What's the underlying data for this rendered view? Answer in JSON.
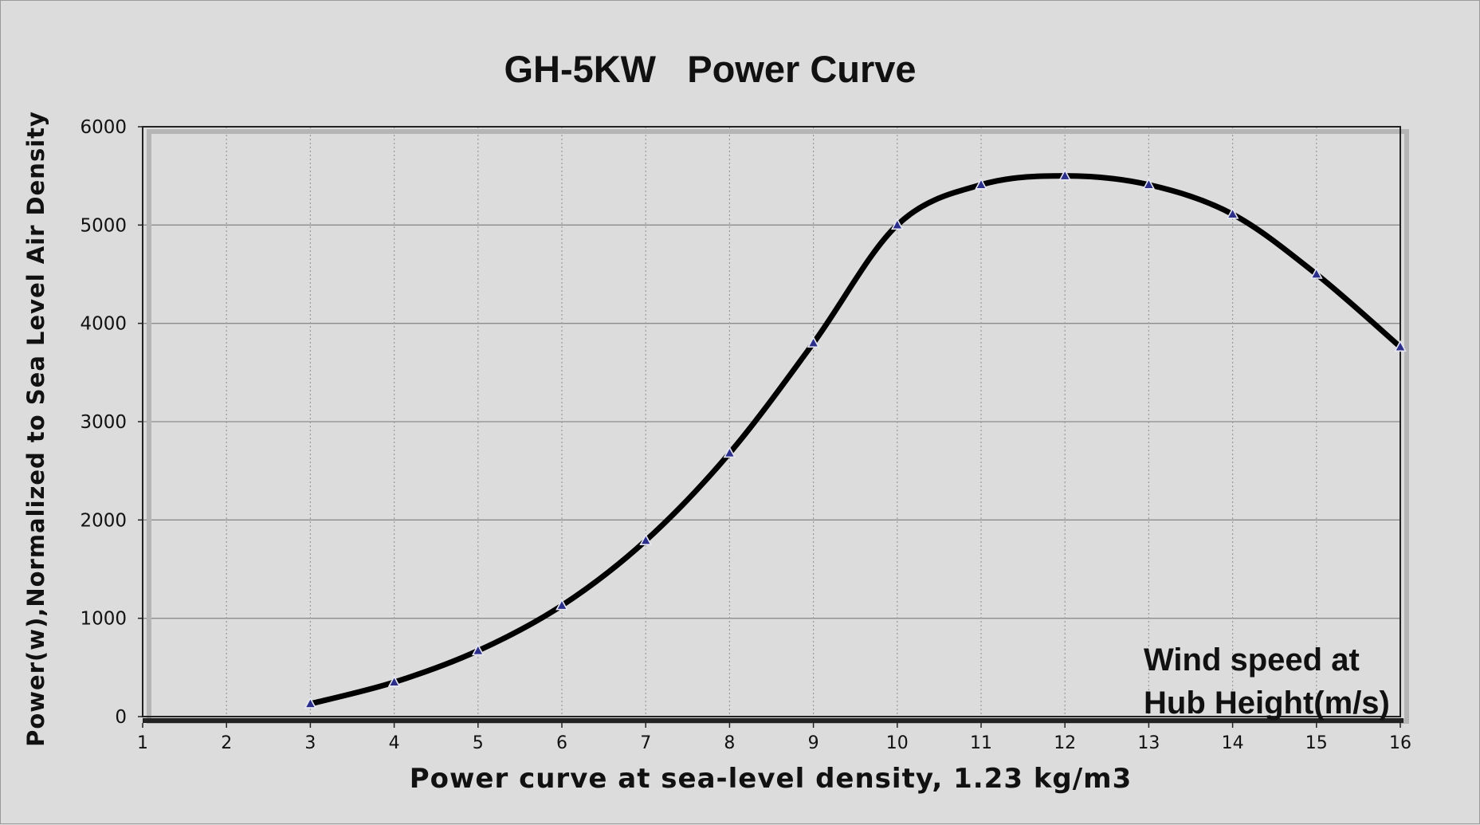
{
  "chart_data": {
    "type": "line",
    "title": "GH-5KW   Power Curve",
    "xlabel": "Power curve at sea-level density, 1.23 kg/m3",
    "ylabel": "Power(w),Normalized to Sea Level Air Density",
    "annotation": [
      "Wind speed at",
      "Hub Height(m/s)"
    ],
    "xlim": [
      1,
      16
    ],
    "ylim": [
      0,
      6000
    ],
    "x_ticks": [
      1,
      2,
      3,
      4,
      5,
      6,
      7,
      8,
      9,
      10,
      11,
      12,
      13,
      14,
      15,
      16
    ],
    "y_ticks": [
      0,
      1000,
      2000,
      3000,
      4000,
      5000,
      6000
    ],
    "grid": true,
    "series": [
      {
        "x": [
          3,
          4,
          5,
          6,
          7,
          8,
          9,
          10,
          11,
          12,
          13,
          14,
          15,
          16
        ],
        "y": [
          130,
          350,
          670,
          1130,
          1790,
          2680,
          3800,
          5000,
          5410,
          5500,
          5410,
          5110,
          4500,
          3760
        ],
        "color": "#000000",
        "marker": "triangle",
        "marker_color": "#2b2f8a"
      }
    ]
  }
}
